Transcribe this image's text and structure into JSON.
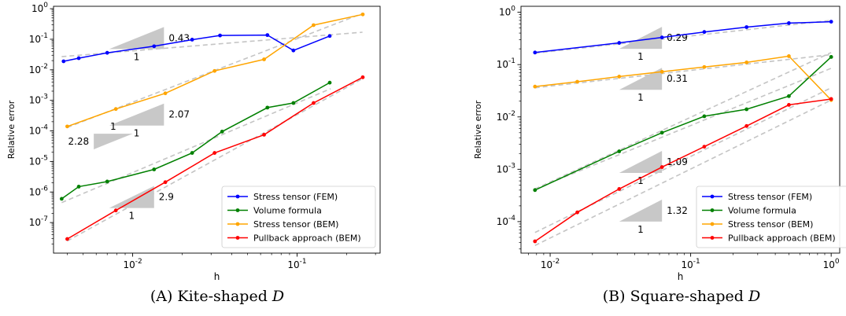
{
  "chart_data": [
    {
      "type": "line",
      "xscale": "log",
      "yscale": "log",
      "xlim": [
        0.0033,
        0.32
      ],
      "ylim": [
        1e-08,
        1.2
      ],
      "xlabel": "h",
      "ylabel": "Relative error",
      "xticks": [
        {
          "v": 0.01,
          "label": "10^-2"
        },
        {
          "v": 0.1,
          "label": "10^-1"
        }
      ],
      "yticks": [
        {
          "v": 1,
          "label": "10^0"
        },
        {
          "v": 0.1,
          "label": "10^-1"
        },
        {
          "v": 0.01,
          "label": "10^-2"
        },
        {
          "v": 0.001,
          "label": "10^-3"
        },
        {
          "v": 0.0001,
          "label": "10^-4"
        },
        {
          "v": 1e-05,
          "label": "10^-5"
        },
        {
          "v": 1e-06,
          "label": "10^-6"
        },
        {
          "v": 1e-07,
          "label": "10^-7"
        }
      ],
      "legend_position": "lower-right",
      "caption": {
        "prefix": "(A) Kite-shaped ",
        "var": "D"
      },
      "series": [
        {
          "name": "Stress tensor (FEM)",
          "color": "#0000ff",
          "x": [
            0.0038,
            0.0047,
            0.007,
            0.0135,
            0.023,
            0.034,
            0.066,
            0.095,
            0.158
          ],
          "y": [
            0.019,
            0.024,
            0.036,
            0.059,
            0.097,
            0.133,
            0.137,
            0.043,
            0.128
          ]
        },
        {
          "name": "Volume formula",
          "color": "#008000",
          "x": [
            0.0037,
            0.0047,
            0.007,
            0.0135,
            0.023,
            0.035,
            0.066,
            0.095,
            0.158
          ],
          "y": [
            6e-07,
            1.5e-06,
            2.2e-06,
            5.5e-06,
            1.9e-05,
            9.5e-05,
            0.00058,
            0.00082,
            0.0038
          ]
        },
        {
          "name": "Stress tensor (BEM)",
          "color": "#ffa500",
          "x": [
            0.004,
            0.0079,
            0.0158,
            0.0315,
            0.063,
            0.126,
            0.251
          ],
          "y": [
            0.00014,
            0.00052,
            0.0017,
            0.0092,
            0.022,
            0.29,
            0.65
          ]
        },
        {
          "name": "Pullback approach (BEM)",
          "color": "#ff0000",
          "x": [
            0.004,
            0.0079,
            0.0158,
            0.0315,
            0.063,
            0.126,
            0.251
          ],
          "y": [
            2.9e-08,
            2.5e-07,
            2.1e-06,
            1.9e-05,
            7.5e-05,
            0.00082,
            0.0057
          ]
        }
      ],
      "reference_lines": [
        {
          "x": [
            0.0037,
            0.25
          ],
          "y": [
            0.027,
            0.17
          ]
        },
        {
          "x": [
            0.004,
            0.25
          ],
          "y": [
            0.00013,
            0.7
          ]
        },
        {
          "x": [
            0.0037,
            0.16
          ],
          "y": [
            4.5e-07,
            0.0024
          ]
        },
        {
          "x": [
            0.004,
            0.25
          ],
          "y": [
            2.5e-08,
            0.0051
          ]
        }
      ],
      "slope_triangles": [
        {
          "slope": "0.43",
          "run_label": "1",
          "x1": 0.0072,
          "x2": 0.0155,
          "ybase": 0.048,
          "orient": "up",
          "slope_side": "right"
        },
        {
          "slope": "2.07",
          "run_label": "1",
          "x1": 0.0072,
          "x2": 0.0155,
          "ybase": 0.00015,
          "orient": "up",
          "slope_side": "right"
        },
        {
          "slope": "2.28",
          "run_label": "1",
          "x1": 0.0058,
          "x2": 0.01,
          "ybase": 2.5e-05,
          "orient": "down",
          "slope_side": "left"
        },
        {
          "slope": "2.9",
          "run_label": "1",
          "x1": 0.0072,
          "x2": 0.0135,
          "ybase": 3e-07,
          "orient": "up",
          "slope_side": "right"
        }
      ]
    },
    {
      "type": "line",
      "xscale": "log",
      "yscale": "log",
      "xlim": [
        0.0062,
        1.15
      ],
      "ylim": [
        2.5e-05,
        1.3
      ],
      "xlabel": "h",
      "ylabel": "Relative error",
      "xticks": [
        {
          "v": 0.01,
          "label": "10^-2"
        },
        {
          "v": 0.1,
          "label": "10^-1"
        },
        {
          "v": 1,
          "label": "10^0"
        }
      ],
      "yticks": [
        {
          "v": 1,
          "label": "10^0"
        },
        {
          "v": 0.1,
          "label": "10^-1"
        },
        {
          "v": 0.01,
          "label": "10^-2"
        },
        {
          "v": 0.001,
          "label": "10^-3"
        },
        {
          "v": 0.0001,
          "label": "10^-4"
        }
      ],
      "legend_position": "lower-right",
      "caption": {
        "prefix": "(B) Square-shaped ",
        "var": "D"
      },
      "series": [
        {
          "name": "Stress tensor (FEM)",
          "color": "#0000ff",
          "x": [
            0.0078,
            0.031,
            0.0625,
            0.125,
            0.25,
            0.5,
            1.0
          ],
          "y": [
            0.17,
            0.26,
            0.33,
            0.42,
            0.52,
            0.62,
            0.66
          ]
        },
        {
          "name": "Volume formula",
          "color": "#008000",
          "x": [
            0.0078,
            0.031,
            0.0625,
            0.125,
            0.25,
            0.5,
            1.0
          ],
          "y": [
            0.0004,
            0.0022,
            0.005,
            0.0103,
            0.014,
            0.025,
            0.14
          ]
        },
        {
          "name": "Stress tensor (BEM)",
          "color": "#ffa500",
          "x": [
            0.0078,
            0.0156,
            0.031,
            0.0625,
            0.125,
            0.25,
            0.5,
            1.0
          ],
          "y": [
            0.038,
            0.047,
            0.059,
            0.073,
            0.09,
            0.11,
            0.145,
            0.021
          ]
        },
        {
          "name": "Pullback approach (BEM)",
          "color": "#ff0000",
          "x": [
            0.0078,
            0.0156,
            0.031,
            0.0625,
            0.125,
            0.25,
            0.5,
            1.0
          ],
          "y": [
            4.2e-05,
            0.00015,
            0.00042,
            0.0011,
            0.0027,
            0.0067,
            0.017,
            0.022
          ]
        }
      ],
      "reference_lines": [
        {
          "x": [
            0.0078,
            1.0
          ],
          "y": [
            0.165,
            0.7
          ]
        },
        {
          "x": [
            0.0078,
            1.0
          ],
          "y": [
            0.036,
            0.155
          ]
        },
        {
          "x": [
            0.0078,
            1.0
          ],
          "y": [
            0.00042,
            0.085
          ]
        },
        {
          "x": [
            0.0078,
            1.0
          ],
          "y": [
            0.00042,
            0.17
          ]
        },
        {
          "x": [
            0.0078,
            1.0
          ],
          "y": [
            3.5e-05,
            0.021
          ]
        },
        {
          "x": [
            0.0078,
            1.0
          ],
          "y": [
            6.2e-05,
            0.036
          ]
        }
      ],
      "slope_triangles": [
        {
          "slope": "0.29",
          "run_label": "1",
          "x1": 0.031,
          "x2": 0.0625,
          "ybase": 0.2,
          "orient": "up",
          "slope_side": "right"
        },
        {
          "slope": "0.31",
          "run_label": "1",
          "x1": 0.031,
          "x2": 0.0625,
          "ybase": 0.033,
          "orient": "up",
          "slope_side": "right"
        },
        {
          "slope": "1.09",
          "run_label": "1",
          "x1": 0.031,
          "x2": 0.0625,
          "ybase": 0.00085,
          "orient": "up",
          "slope_side": "right"
        },
        {
          "slope": "1.32",
          "run_label": "1",
          "x1": 0.031,
          "x2": 0.0625,
          "ybase": 0.0001,
          "orient": "up",
          "slope_side": "right"
        }
      ]
    }
  ]
}
